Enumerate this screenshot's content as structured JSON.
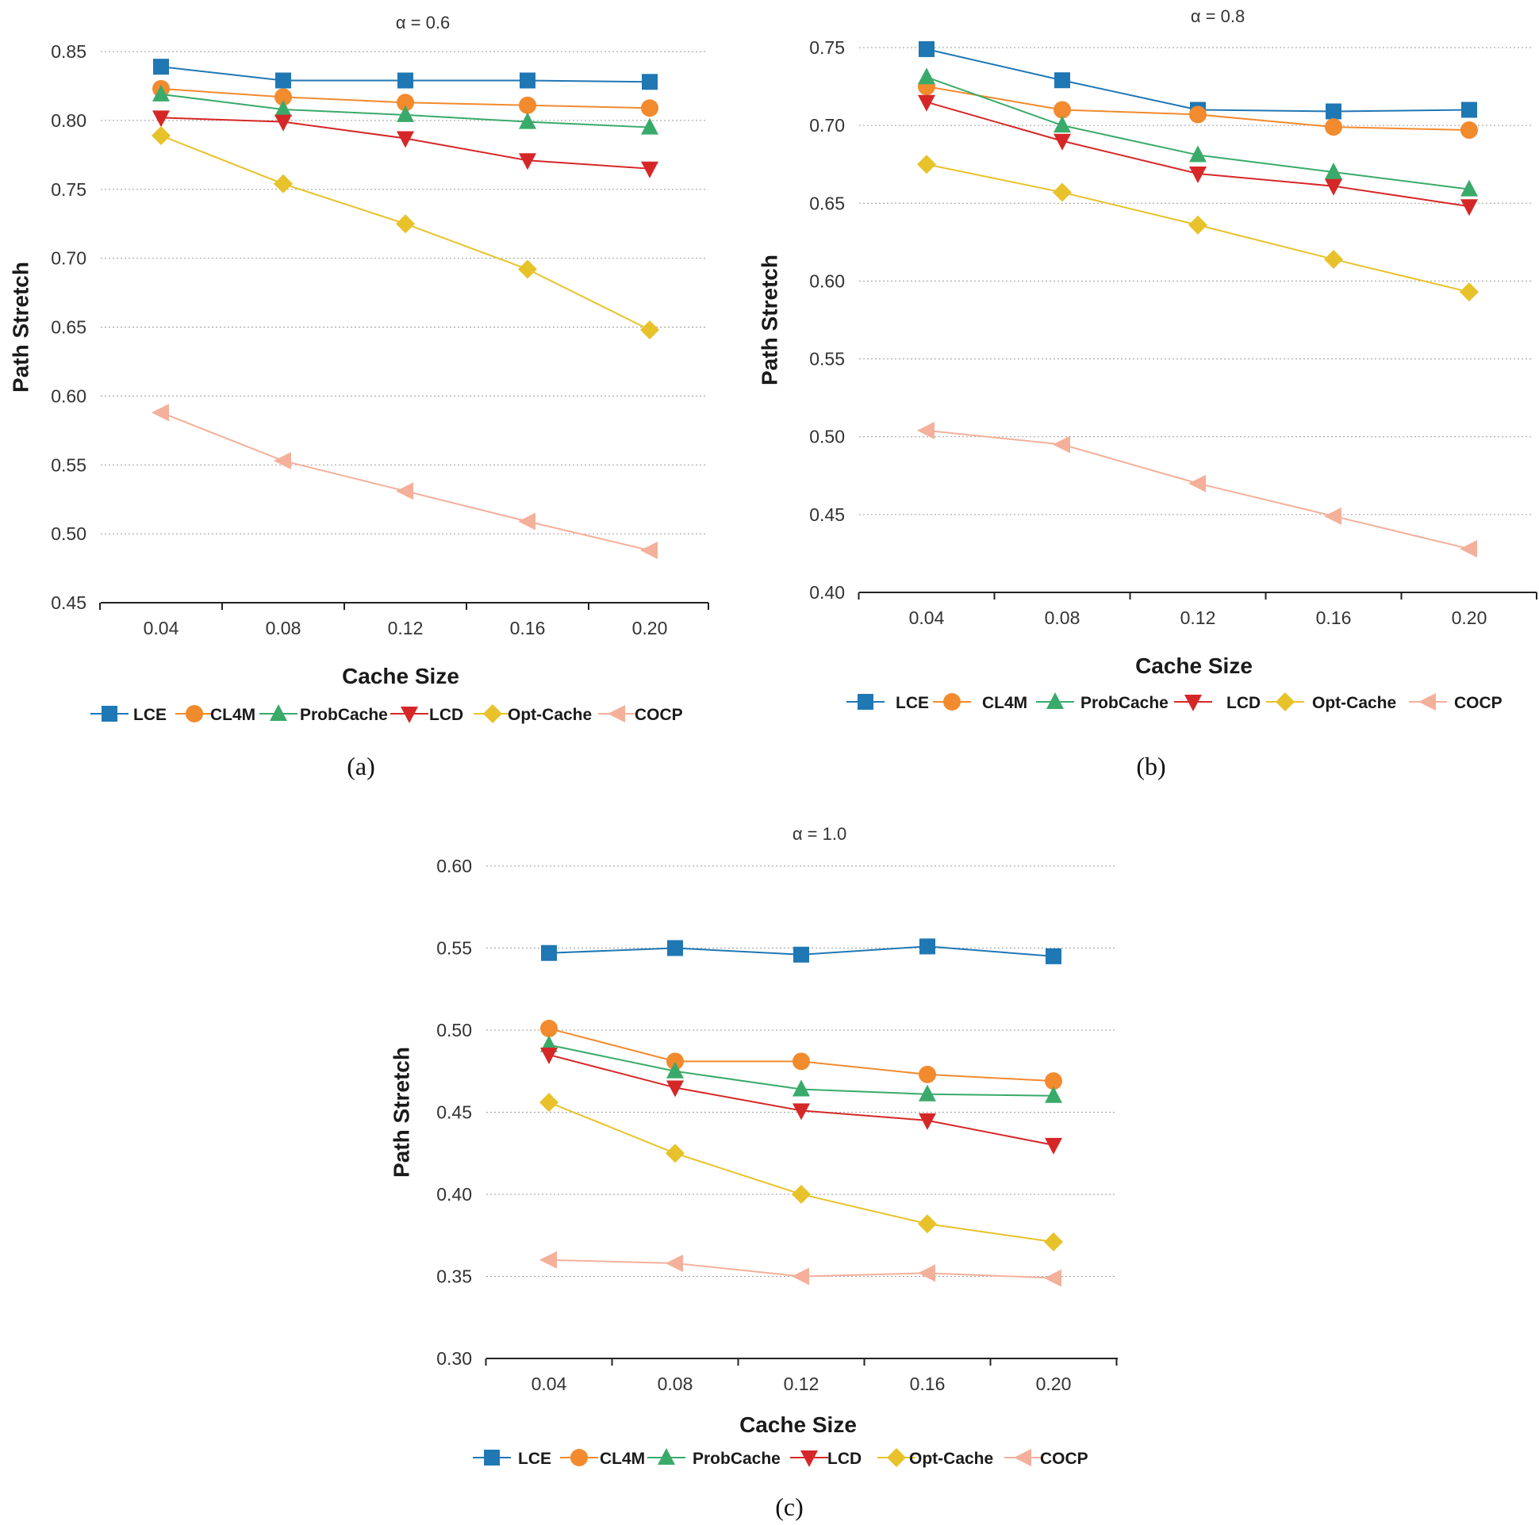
{
  "series_styles": [
    {
      "name": "LCE",
      "color": "#1f77b4",
      "marker": "square"
    },
    {
      "name": "CL4M",
      "color": "#f28a2e",
      "marker": "circle"
    },
    {
      "name": "ProbCache",
      "color": "#3aaa6a",
      "marker": "triangle-up"
    },
    {
      "name": "LCD",
      "color": "#d62728",
      "marker": "triangle-down"
    },
    {
      "name": "Opt-Cache",
      "color": "#e8c22a",
      "marker": "diamond"
    },
    {
      "name": "COCP",
      "color": "#f4b09a",
      "marker": "triangle-left"
    }
  ],
  "chart_data": [
    {
      "type": "line",
      "title": "α = 0.6",
      "caption": "(a)",
      "xlabel": "Cache Size",
      "ylabel": "Path Stretch",
      "categories": [
        "0.04",
        "0.08",
        "0.12",
        "0.16",
        "0.20"
      ],
      "ylim": [
        0.45,
        0.85
      ],
      "yticks": [
        "0.45",
        "0.50",
        "0.55",
        "0.60",
        "0.65",
        "0.70",
        "0.75",
        "0.80",
        "0.85"
      ],
      "grid": true,
      "legend": "bottom",
      "series": [
        {
          "name": "LCE",
          "values": [
            0.839,
            0.829,
            0.829,
            0.829,
            0.828
          ]
        },
        {
          "name": "CL4M",
          "values": [
            0.823,
            0.817,
            0.813,
            0.811,
            0.809
          ]
        },
        {
          "name": "ProbCache",
          "values": [
            0.819,
            0.808,
            0.804,
            0.799,
            0.795
          ]
        },
        {
          "name": "LCD",
          "values": [
            0.802,
            0.799,
            0.787,
            0.771,
            0.765
          ]
        },
        {
          "name": "Opt-Cache",
          "values": [
            0.789,
            0.754,
            0.725,
            0.692,
            0.648
          ]
        },
        {
          "name": "COCP",
          "values": [
            0.588,
            0.553,
            0.531,
            0.509,
            0.488
          ]
        }
      ]
    },
    {
      "type": "line",
      "title": "α = 0.8",
      "caption": "(b)",
      "xlabel": "Cache Size",
      "ylabel": "Path Stretch",
      "categories": [
        "0.04",
        "0.08",
        "0.12",
        "0.16",
        "0.20"
      ],
      "ylim": [
        0.4,
        0.75
      ],
      "yticks": [
        "0.40",
        "0.45",
        "0.50",
        "0.55",
        "0.60",
        "0.65",
        "0.70",
        "0.75"
      ],
      "grid": true,
      "legend": "bottom",
      "series": [
        {
          "name": "LCE",
          "values": [
            0.749,
            0.729,
            0.71,
            0.709,
            0.71
          ]
        },
        {
          "name": "CL4M",
          "values": [
            0.725,
            0.71,
            0.707,
            0.699,
            0.697
          ]
        },
        {
          "name": "ProbCache",
          "values": [
            0.731,
            0.7,
            0.681,
            0.67,
            0.659
          ]
        },
        {
          "name": "LCD",
          "values": [
            0.715,
            0.69,
            0.669,
            0.661,
            0.648
          ]
        },
        {
          "name": "Opt-Cache",
          "values": [
            0.675,
            0.657,
            0.636,
            0.614,
            0.593
          ]
        },
        {
          "name": "COCP",
          "values": [
            0.504,
            0.495,
            0.47,
            0.449,
            0.428
          ]
        }
      ]
    },
    {
      "type": "line",
      "title": "α = 1.0",
      "caption": "(c)",
      "xlabel": "Cache Size",
      "ylabel": "Path Stretch",
      "categories": [
        "0.04",
        "0.08",
        "0.12",
        "0.16",
        "0.20"
      ],
      "ylim": [
        0.3,
        0.6
      ],
      "yticks": [
        "0.30",
        "0.35",
        "0.40",
        "0.45",
        "0.50",
        "0.55",
        "0.60"
      ],
      "grid": true,
      "legend": "bottom",
      "series": [
        {
          "name": "LCE",
          "values": [
            0.547,
            0.55,
            0.546,
            0.551,
            0.545
          ]
        },
        {
          "name": "CL4M",
          "values": [
            0.501,
            0.481,
            0.481,
            0.473,
            0.469
          ]
        },
        {
          "name": "ProbCache",
          "values": [
            0.491,
            0.475,
            0.464,
            0.461,
            0.46
          ]
        },
        {
          "name": "LCD",
          "values": [
            0.485,
            0.465,
            0.451,
            0.445,
            0.43
          ]
        },
        {
          "name": "Opt-Cache",
          "values": [
            0.456,
            0.425,
            0.4,
            0.382,
            0.371
          ]
        },
        {
          "name": "COCP",
          "values": [
            0.36,
            0.358,
            0.35,
            0.352,
            0.349
          ]
        }
      ]
    }
  ]
}
